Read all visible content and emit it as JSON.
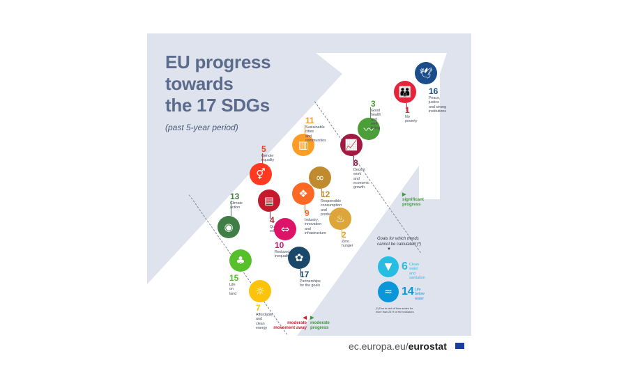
{
  "title_lines": [
    "EU progress",
    "towards",
    "the 17 SDGs"
  ],
  "subtitle": "(past 5-year period)",
  "colors": {
    "background": "#dfe3ed",
    "arrow": "#ffffff",
    "title": "#5b6b8c",
    "significant": "#3e9a3a",
    "moderate": "#3e9a3a",
    "moderate_away": "#d0212f"
  },
  "goals": [
    {
      "number": "16",
      "label": "Peace, justice\nand strong\ninstitutions",
      "color": "#1a4d8a",
      "icon": "dove-icon"
    },
    {
      "number": "1",
      "label": "No poverty",
      "color": "#e5243b",
      "icon": "people-icon"
    },
    {
      "number": "3",
      "label": "Good health\nand well-being",
      "color": "#4c9f38",
      "icon": "heartbeat-icon"
    },
    {
      "number": "8",
      "label": "Decent work\nand economic\ngrowth",
      "color": "#a21942",
      "icon": "growth-chart-icon"
    },
    {
      "number": "11",
      "label": "Sustainable cities\nand communities",
      "color": "#fd9d24",
      "icon": "city-icon"
    },
    {
      "number": "5",
      "label": "Gender\nequality",
      "color": "#ff3a21",
      "icon": "gender-icon"
    },
    {
      "number": "12",
      "label": "Responsible consumption\nand production",
      "color": "#bf8b2e",
      "icon": "infinity-icon"
    },
    {
      "number": "9",
      "label": "Industry,\ninnovation\nand\ninfrastructure",
      "color": "#fd6925",
      "icon": "cubes-icon"
    },
    {
      "number": "2",
      "label": "Zero\nhunger",
      "color": "#dda63a",
      "icon": "bowl-icon"
    },
    {
      "number": "13",
      "label": "Climate\naction",
      "color": "#3f7e44",
      "icon": "eye-globe-icon"
    },
    {
      "number": "4",
      "label": "Quality\neducation",
      "color": "#c5192d",
      "icon": "book-icon"
    },
    {
      "number": "10",
      "label": "Reduced\ninequalities",
      "color": "#dd1367",
      "icon": "arrows-icon"
    },
    {
      "number": "17",
      "label": "Partnerships\nfor the goals",
      "color": "#19486a",
      "icon": "flower-icon"
    },
    {
      "number": "15",
      "label": "Life on\nland",
      "color": "#56c02b",
      "icon": "tree-icon"
    },
    {
      "number": "7",
      "label": "Affordable and\nclean energy",
      "color": "#fcc30b",
      "icon": "sun-icon"
    }
  ],
  "thresholds": {
    "significant": "significant\nprogress",
    "moderate": "moderate\nprogress",
    "moderate_away": "moderate\nmovement away"
  },
  "legend": {
    "heading": "Goals for which trends\ncannot be calculated  (*)",
    "items": [
      {
        "number": "6",
        "label": "Clean water\nand sanitation",
        "color": "#26bde2",
        "icon": "water-drop-icon"
      },
      {
        "number": "14",
        "label": "Life below\nwater",
        "color": "#0a97d9",
        "icon": "fish-icon"
      }
    ],
    "footnote": "(*) Due to lack of time series for\nmore than 25 % of the indicators"
  },
  "footer": {
    "domain": "ec.europa.eu/",
    "brand": "eurostat"
  }
}
